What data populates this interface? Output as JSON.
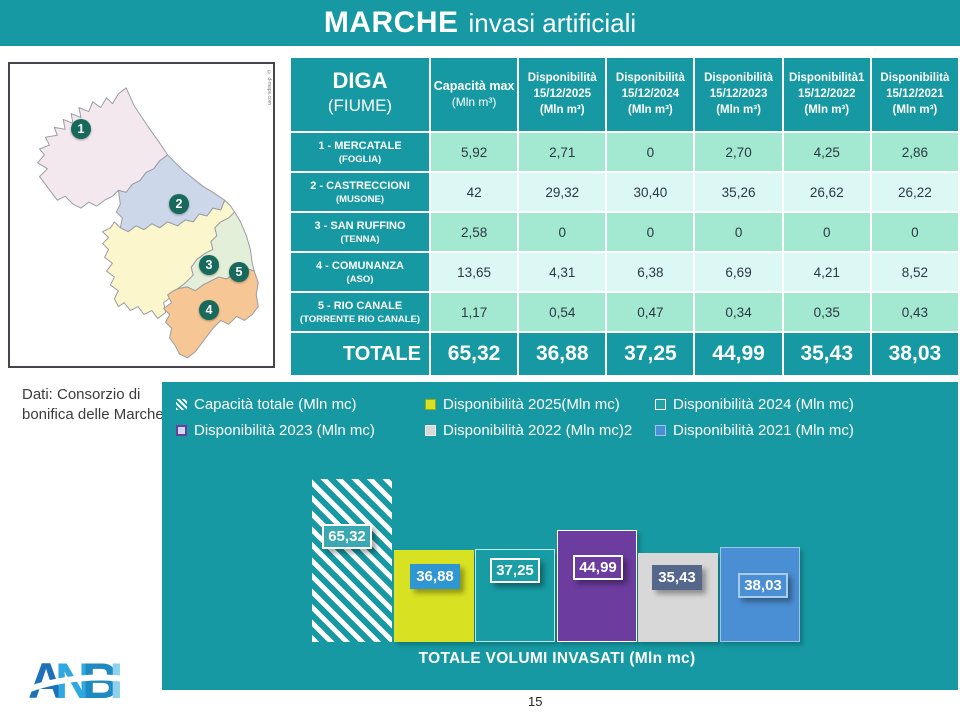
{
  "header": {
    "title_bold": "MARCHE",
    "title_rest": "invasi artificiali"
  },
  "palette": {
    "teal": "#1699A2",
    "row_green": "#A3E9D1",
    "row_cyan": "#DCF8F4",
    "c2025": "#D8E222",
    "c2023": "#6C3C9F",
    "c2022": "#D8D8D8",
    "c2021": "#4A8FD3",
    "marker": "#17695B"
  },
  "map": {
    "credit": "© d-maps.com",
    "markers": [
      {
        "n": "1",
        "x": 71,
        "y": 65
      },
      {
        "n": "2",
        "x": 169,
        "y": 140
      },
      {
        "n": "3",
        "x": 199,
        "y": 201
      },
      {
        "n": "5",
        "x": 229,
        "y": 208
      },
      {
        "n": "4",
        "x": 199,
        "y": 246
      }
    ]
  },
  "source": {
    "line1": "Dati: Consorzio di",
    "line2": "bonifica delle Marche"
  },
  "table": {
    "col_headers": [
      {
        "lines": [
          "DIGA",
          "(FIUME)"
        ]
      },
      {
        "lines": [
          "Capacità max",
          "(Mln m³)"
        ]
      },
      {
        "lines": [
          "Disponibilità",
          "15/12/2025",
          "(Mln m³)"
        ]
      },
      {
        "lines": [
          "Disponibilità",
          "15/12/2024",
          "(Mln m³)"
        ]
      },
      {
        "lines": [
          "Disponibilità",
          "15/12/2023",
          "(Mln m³)"
        ]
      },
      {
        "lines": [
          "Disponibilità1",
          "15/12/2022",
          "(Mln m³)"
        ]
      },
      {
        "lines": [
          "Disponibilità",
          "15/12/2021",
          "(Mln m³)"
        ]
      }
    ],
    "rows": [
      {
        "name": "1 - MERCATALE",
        "river": "(FOGLIA)",
        "values": [
          "5,92",
          "2,71",
          "0",
          "2,70",
          "4,25",
          "2,86"
        ]
      },
      {
        "name": "2 - CASTRECCIONI",
        "river": "(MUSONE)",
        "values": [
          "42",
          "29,32",
          "30,40",
          "35,26",
          "26,62",
          "26,22"
        ]
      },
      {
        "name": "3 - SAN RUFFINO",
        "river": "(TENNA)",
        "values": [
          "2,58",
          "0",
          "0",
          "0",
          "0",
          "0"
        ]
      },
      {
        "name": "4 - COMUNANZA",
        "river": "(ASO)",
        "values": [
          "13,65",
          "4,31",
          "6,38",
          "6,69",
          "4,21",
          "8,52"
        ]
      },
      {
        "name": "5 - RIO CANALE",
        "river": "(TORRENTE RIO CANALE)",
        "values": [
          "1,17",
          "0,54",
          "0,47",
          "0,34",
          "0,35",
          "0,43"
        ]
      }
    ],
    "total": {
      "label": "TOTALE",
      "values": [
        "65,32",
        "36,88",
        "37,25",
        "44,99",
        "35,43",
        "38,03"
      ]
    }
  },
  "chart": {
    "legend": [
      {
        "label": "Capacità totale (Mln mc)",
        "swatch": "sw-hatch"
      },
      {
        "label": "Disponibilità 2025(Mln mc)",
        "swatch": "sw-2025"
      },
      {
        "label": "Disponibilità 2024 (Mln mc)",
        "swatch": "sw-2024"
      },
      {
        "label": "Disponibilità 2023 (Mln mc)",
        "swatch": "sw-2023"
      },
      {
        "label": "Disponibilità 2022 (Mln mc)2",
        "swatch": "sw-2022"
      },
      {
        "label": "Disponibilità 2021 (Mln mc)",
        "swatch": "sw-2021"
      }
    ],
    "bars": [
      {
        "name": "capacita-totale",
        "value": 65.32,
        "label": "65,32",
        "style": "b-hatch"
      },
      {
        "name": "disponibilita-2025",
        "value": 36.88,
        "label": "36,88",
        "style": "b-2025"
      },
      {
        "name": "disponibilita-2024",
        "value": 37.25,
        "label": "37,25",
        "style": "b-2024"
      },
      {
        "name": "disponibilita-2023",
        "value": 44.99,
        "label": "44,99",
        "style": "b-2023"
      },
      {
        "name": "disponibilita-2022",
        "value": 35.43,
        "label": "35,43",
        "style": "b-2022"
      },
      {
        "name": "disponibilita-2021",
        "value": 38.03,
        "label": "38,03",
        "style": "b-2021"
      }
    ],
    "caption": "TOTALE VOLUMI INVASATI (Mln mc)"
  },
  "chart_data": {
    "type": "bar",
    "categories": [
      "Capacità totale",
      "Disponibilità 2025",
      "Disponibilità 2024",
      "Disponibilità 2023",
      "Disponibilità 2022",
      "Disponibilità 2021"
    ],
    "values": [
      65.32,
      36.88,
      37.25,
      44.99,
      35.43,
      38.03
    ],
    "data_labels": [
      "65,32",
      "36,88",
      "37,25",
      "44,99",
      "35,43",
      "38,03"
    ],
    "title": "TOTALE VOLUMI INVASATI (Mln mc)",
    "xlabel": "",
    "ylabel": "",
    "ylim": [
      0,
      65.32
    ],
    "grid": false,
    "legend_position": "top"
  },
  "footer": {
    "page_number": "15",
    "logo_letters": [
      "A",
      "N",
      "B",
      "I"
    ]
  }
}
